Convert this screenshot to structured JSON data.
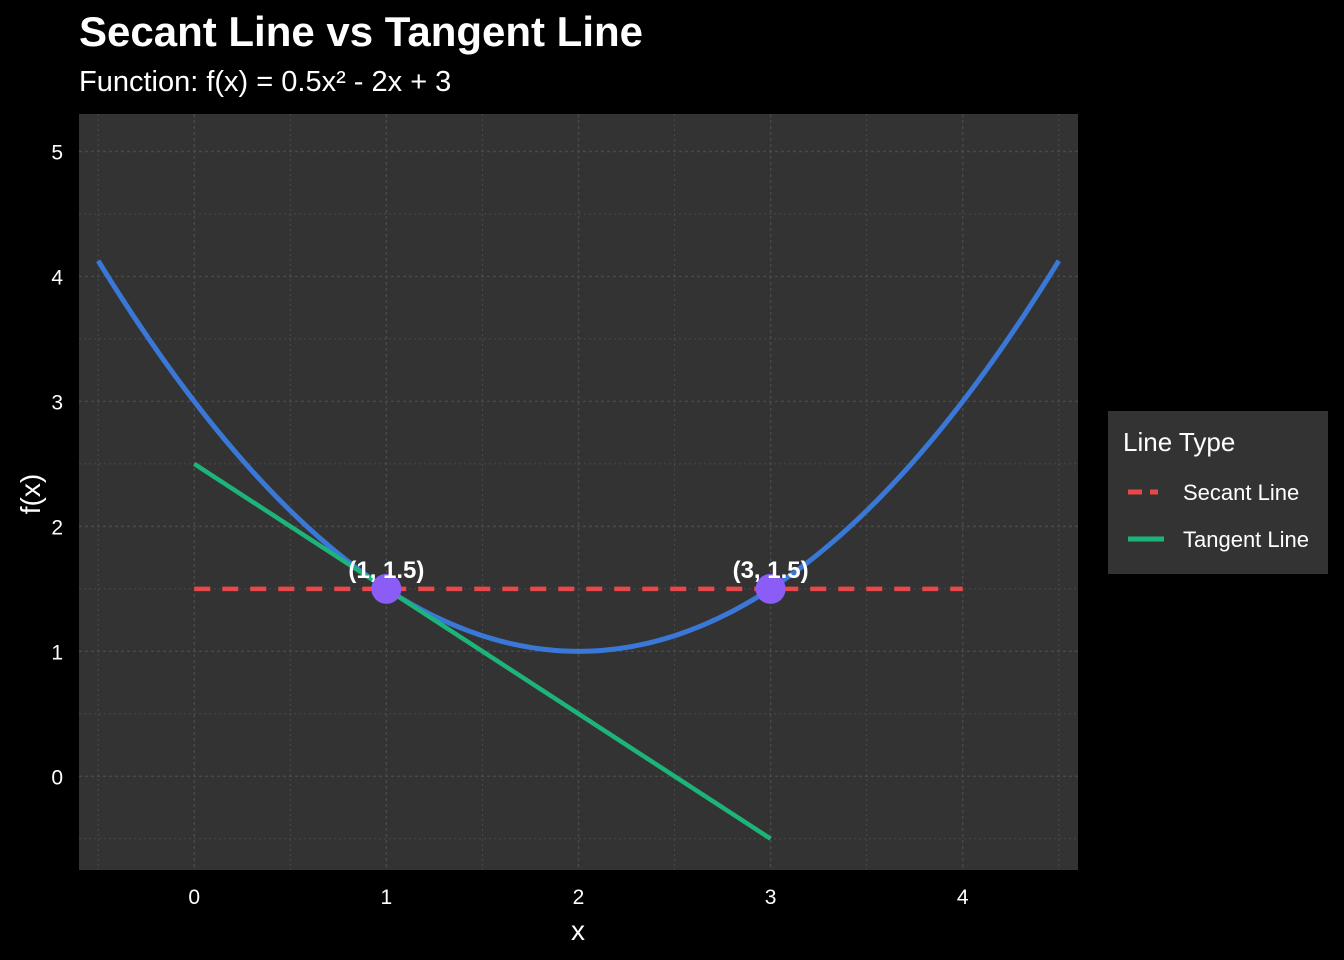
{
  "chart_data": {
    "type": "line",
    "title": "Secant Line vs Tangent Line",
    "subtitle": "Function: f(x) = 0.5x² - 2x + 3",
    "xlabel": "x",
    "ylabel": "f(x)",
    "xlim": [
      -0.6,
      4.6
    ],
    "ylim": [
      -0.75,
      5.3
    ],
    "x_ticks": [
      0,
      1,
      2,
      3,
      4
    ],
    "y_ticks": [
      0,
      1,
      2,
      3,
      4,
      5
    ],
    "grid": true,
    "function": {
      "expression": "0.5x^2 - 2x + 3",
      "x_range": [
        -0.5,
        4.5
      ],
      "color": "#3A78D8"
    },
    "series": [
      {
        "name": "Secant Line",
        "style": "dashed",
        "color": "#E8474B",
        "x": [
          0,
          4
        ],
        "y": [
          1.5,
          1.5
        ]
      },
      {
        "name": "Tangent Line",
        "style": "solid",
        "color": "#1DB47A",
        "x": [
          0,
          3
        ],
        "y": [
          2.5,
          -0.5
        ]
      }
    ],
    "points": [
      {
        "x": 1,
        "y": 1.5,
        "label": "(1, 1.5)"
      },
      {
        "x": 3,
        "y": 1.5,
        "label": "(3, 1.5)"
      }
    ],
    "point_color": "#8B5CF6",
    "legend": {
      "title": "Line Type",
      "position": "right",
      "entries": [
        "Secant Line",
        "Tangent Line"
      ]
    },
    "colors": {
      "page_background": "#000000",
      "panel_background": "#333333",
      "grid": "#4A4A4A",
      "text": "#FFFFFF",
      "legend_background": "#333333"
    }
  }
}
